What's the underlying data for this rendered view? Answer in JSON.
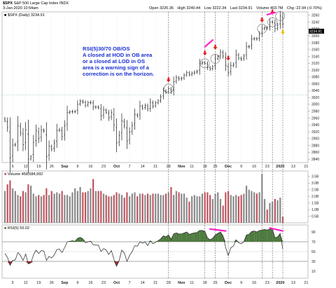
{
  "header": {
    "symbol": "$SPX",
    "name": "S&P 500 Large Cap Index",
    "exchange": "INDX",
    "date": "3-Jan-2020 10:54am",
    "quote": {
      "open_label": "Open",
      "open": "3226.36",
      "high_label": "High",
      "high": "3240.44",
      "low_label": "Low",
      "low": "3222.34",
      "last_label": "Last",
      "last": "3234.91",
      "volume_label": "Volume",
      "volume": "403.7M",
      "chg_label": "Chg",
      "chg": "-22.94 (-0.70%)"
    }
  },
  "price_panel": {
    "legend": "$SPX (Daily) 3234.91",
    "last_price_badge": "3234.91",
    "y_ticks": [
      "3260",
      "3240",
      "3220",
      "3200",
      "3180",
      "3160",
      "3140",
      "3120",
      "3100",
      "3080",
      "3060",
      "3040",
      "3020",
      "3000",
      "2980",
      "2960",
      "2940",
      "2920",
      "2900",
      "2880",
      "2860",
      "2840"
    ],
    "annotation_lines": [
      "RSI(5)30/70 OB/OS",
      "A closed at HOD in OB area",
      "or  a closed at LOD in OS",
      "area is a warning sign of a",
      "correction is on the horizon."
    ]
  },
  "volume_panel": {
    "legend": "Volume 458,684,992",
    "y_ticks": [
      "3.5B",
      "3.0B",
      "2.5B",
      "2.0B",
      "1.5B",
      "1.0B",
      "0.5B"
    ]
  },
  "rsi_panel": {
    "legend": "RSI(5) 55.02",
    "y_ticks": [
      "90",
      "70",
      "50",
      "30",
      "10"
    ],
    "levels": [
      30,
      70
    ]
  },
  "x_axis": {
    "labels": [
      "5",
      "12",
      "19",
      "26",
      "Sep",
      "9",
      "16",
      "23",
      "Oct",
      "7",
      "14",
      "21",
      "28",
      "Nov",
      "11",
      "18",
      "25",
      "Dec",
      "9",
      "16",
      "23",
      "2020",
      "13",
      "21"
    ]
  },
  "colors": {
    "up": "#1a1a1a",
    "down": "#1a1a1a",
    "vol_up": "#8a8a8a",
    "vol_down": "#c0545e",
    "rsi_fill_high": "#4d7a3e",
    "rsi_fill_low": "#a0303a",
    "marker": "#e81a1a",
    "highlight": "#ff1fc8",
    "annotation": "#1a2fd4",
    "today": "#e8c000"
  },
  "chart_data": [
    {
      "type": "candlestick",
      "title": "$SPX (Daily) 3234.91",
      "ylim": [
        2830,
        3270
      ],
      "x": [
        "Aug 1",
        "Aug 2",
        "Aug 5",
        "Aug 6",
        "Aug 7",
        "Aug 8",
        "Aug 9",
        "Aug 12",
        "Aug 13",
        "Aug 14",
        "Aug 15",
        "Aug 16",
        "Aug 19",
        "Aug 20",
        "Aug 21",
        "Aug 22",
        "Aug 23",
        "Aug 26",
        "Aug 27",
        "Aug 28",
        "Aug 29",
        "Aug 30",
        "Sep 3",
        "Sep 4",
        "Sep 5",
        "Sep 6",
        "Sep 9",
        "Sep 10",
        "Sep 11",
        "Sep 12",
        "Sep 13",
        "Sep 16",
        "Sep 17",
        "Sep 18",
        "Sep 19",
        "Sep 20",
        "Sep 23",
        "Sep 24",
        "Sep 25",
        "Sep 26",
        "Sep 27",
        "Sep 30",
        "Oct 1",
        "Oct 2",
        "Oct 3",
        "Oct 4",
        "Oct 7",
        "Oct 8",
        "Oct 9",
        "Oct 10",
        "Oct 11",
        "Oct 14",
        "Oct 15",
        "Oct 16",
        "Oct 17",
        "Oct 18",
        "Oct 21",
        "Oct 22",
        "Oct 23",
        "Oct 24",
        "Oct 25",
        "Oct 28",
        "Oct 29",
        "Oct 30",
        "Oct 31",
        "Nov 1",
        "Nov 4",
        "Nov 5",
        "Nov 6",
        "Nov 7",
        "Nov 8",
        "Nov 11",
        "Nov 12",
        "Nov 13",
        "Nov 14",
        "Nov 15",
        "Nov 18",
        "Nov 19",
        "Nov 20",
        "Nov 21",
        "Nov 22",
        "Nov 25",
        "Nov 26",
        "Nov 27",
        "Nov 29",
        "Dec 2",
        "Dec 3",
        "Dec 4",
        "Dec 5",
        "Dec 6",
        "Dec 9",
        "Dec 10",
        "Dec 11",
        "Dec 12",
        "Dec 13",
        "Dec 16",
        "Dec 17",
        "Dec 18",
        "Dec 19",
        "Dec 20",
        "Dec 23",
        "Dec 24",
        "Dec 26",
        "Dec 27",
        "Dec 30",
        "Dec 31",
        "Jan 2",
        "Jan 3"
      ],
      "close": [
        2953,
        2932,
        2844,
        2881,
        2883,
        2938,
        2918,
        2882,
        2926,
        2840,
        2847,
        2889,
        2923,
        2900,
        2925,
        2922,
        2847,
        2878,
        2869,
        2887,
        2924,
        2926,
        2906,
        2937,
        2976,
        2978,
        2979,
        2979,
        3000,
        3009,
        3007,
        2997,
        3005,
        3006,
        2992,
        2992,
        2991,
        2966,
        2984,
        2977,
        2961,
        2976,
        2940,
        2887,
        2910,
        2952,
        2938,
        2893,
        2919,
        2938,
        2970,
        2966,
        2995,
        2989,
        2997,
        2986,
        3006,
        2995,
        3004,
        3010,
        3022,
        3039,
        3036,
        3046,
        3037,
        3066,
        3078,
        3074,
        3076,
        3085,
        3093,
        3087,
        3091,
        3094,
        3096,
        3120,
        3122,
        3120,
        3108,
        3103,
        3110,
        3133,
        3140,
        3153,
        3141,
        3113,
        3093,
        3113,
        3117,
        3145,
        3135,
        3132,
        3141,
        3168,
        3169,
        3191,
        3192,
        3191,
        3205,
        3221,
        3224,
        3223,
        3240,
        3240,
        3221,
        3231,
        3258,
        3235
      ]
    },
    {
      "type": "bar",
      "title": "Volume 458,684,992",
      "ylim": [
        0,
        3.7
      ],
      "values_billion": [
        2.4,
        2.9,
        3.2,
        2.6,
        2.4,
        2.1,
        2.0,
        2.4,
        2.3,
        2.9,
        2.8,
        2.2,
        2.0,
        2.1,
        2.0,
        2.1,
        2.6,
        2.1,
        2.4,
        2.2,
        2.3,
        2.2,
        2.4,
        2.1,
        2.1,
        2.0,
        2.3,
        2.6,
        2.4,
        2.7,
        2.3,
        2.3,
        2.4,
        2.6,
        3.3,
        2.4,
        2.4,
        2.4,
        2.2,
        2.1,
        2.0,
        2.0,
        2.1,
        2.3,
        2.2,
        2.1,
        1.9,
        2.3,
        2.0,
        2.2,
        2.3,
        2.0,
        2.2,
        2.2,
        2.1,
        2.2,
        2.1,
        2.2,
        2.2,
        2.2,
        2.1,
        2.1,
        2.2,
        2.3,
        2.7,
        2.1,
        2.4,
        2.3,
        2.2,
        2.2,
        1.9,
        1.6,
        2.0,
        2.1,
        2.0,
        2.0,
        2.2,
        2.3,
        2.3,
        2.1,
        1.8,
        2.2,
        2.3,
        1.8,
        1.3,
        2.3,
        2.4,
        2.1,
        2.0,
        2.1,
        2.0,
        2.1,
        2.2,
        2.8,
        2.5,
        2.4,
        2.3,
        2.2,
        2.3,
        3.7,
        1.8,
        1.0,
        1.5,
        1.6,
        1.8,
        1.7,
        1.9,
        0.46
      ]
    },
    {
      "type": "area",
      "title": "RSI(5) 55.02",
      "ylim": [
        0,
        100
      ],
      "values": [
        46,
        38,
        22,
        32,
        33,
        48,
        42,
        32,
        45,
        25,
        27,
        43,
        53,
        46,
        52,
        51,
        32,
        40,
        37,
        43,
        54,
        55,
        48,
        58,
        70,
        71,
        72,
        71,
        77,
        79,
        76,
        68,
        70,
        71,
        64,
        63,
        63,
        50,
        56,
        53,
        44,
        52,
        34,
        20,
        32,
        53,
        47,
        30,
        42,
        50,
        62,
        61,
        70,
        67,
        70,
        62,
        72,
        66,
        69,
        72,
        76,
        82,
        80,
        84,
        75,
        86,
        88,
        86,
        86,
        88,
        90,
        85,
        87,
        88,
        89,
        93,
        93,
        91,
        78,
        74,
        77,
        84,
        87,
        90,
        82,
        58,
        42,
        58,
        61,
        74,
        68,
        66,
        70,
        84,
        85,
        91,
        92,
        90,
        93,
        94,
        95,
        94,
        96,
        96,
        78,
        80,
        87,
        55
      ]
    }
  ]
}
